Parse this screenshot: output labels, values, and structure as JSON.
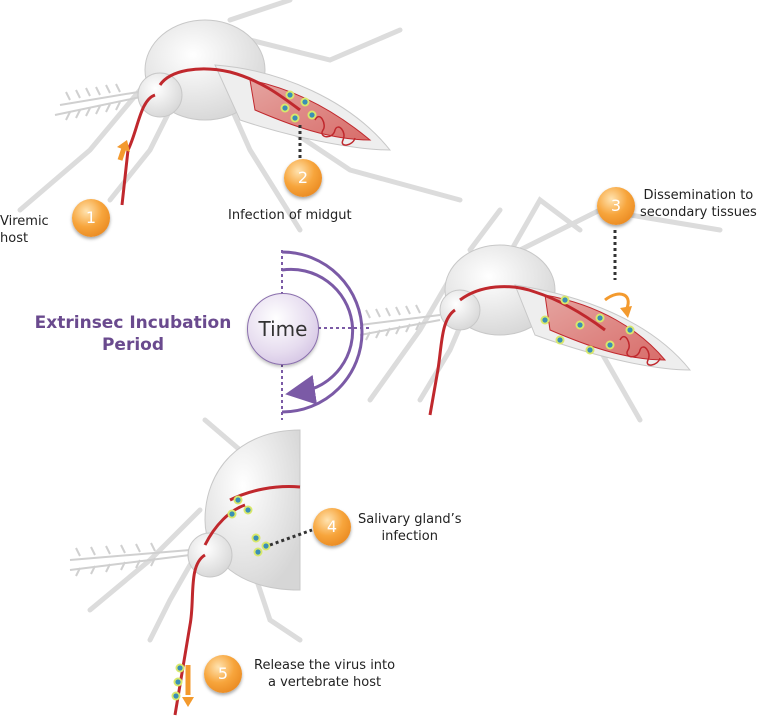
{
  "labels": {
    "step1": [
      "Viremic",
      "host"
    ],
    "step2": "Infection of midgut",
    "step3": [
      "Dissemination to",
      "secondary tissues"
    ],
    "step4": [
      "Salivary gland’s",
      "infection"
    ],
    "step5": [
      "Release the virus into",
      "a vertebrate host"
    ]
  },
  "period": [
    "Extrinsec Incubation",
    "Period"
  ],
  "time": "Time",
  "badges": [
    "1",
    "2",
    "3",
    "4",
    "5"
  ],
  "colors": {
    "vessel": "#c0282d",
    "badge": "#f39a2e",
    "time_accent": "#7b5aa6",
    "mosquito": "#d9d9d9",
    "virus": "#3a8fb5"
  }
}
